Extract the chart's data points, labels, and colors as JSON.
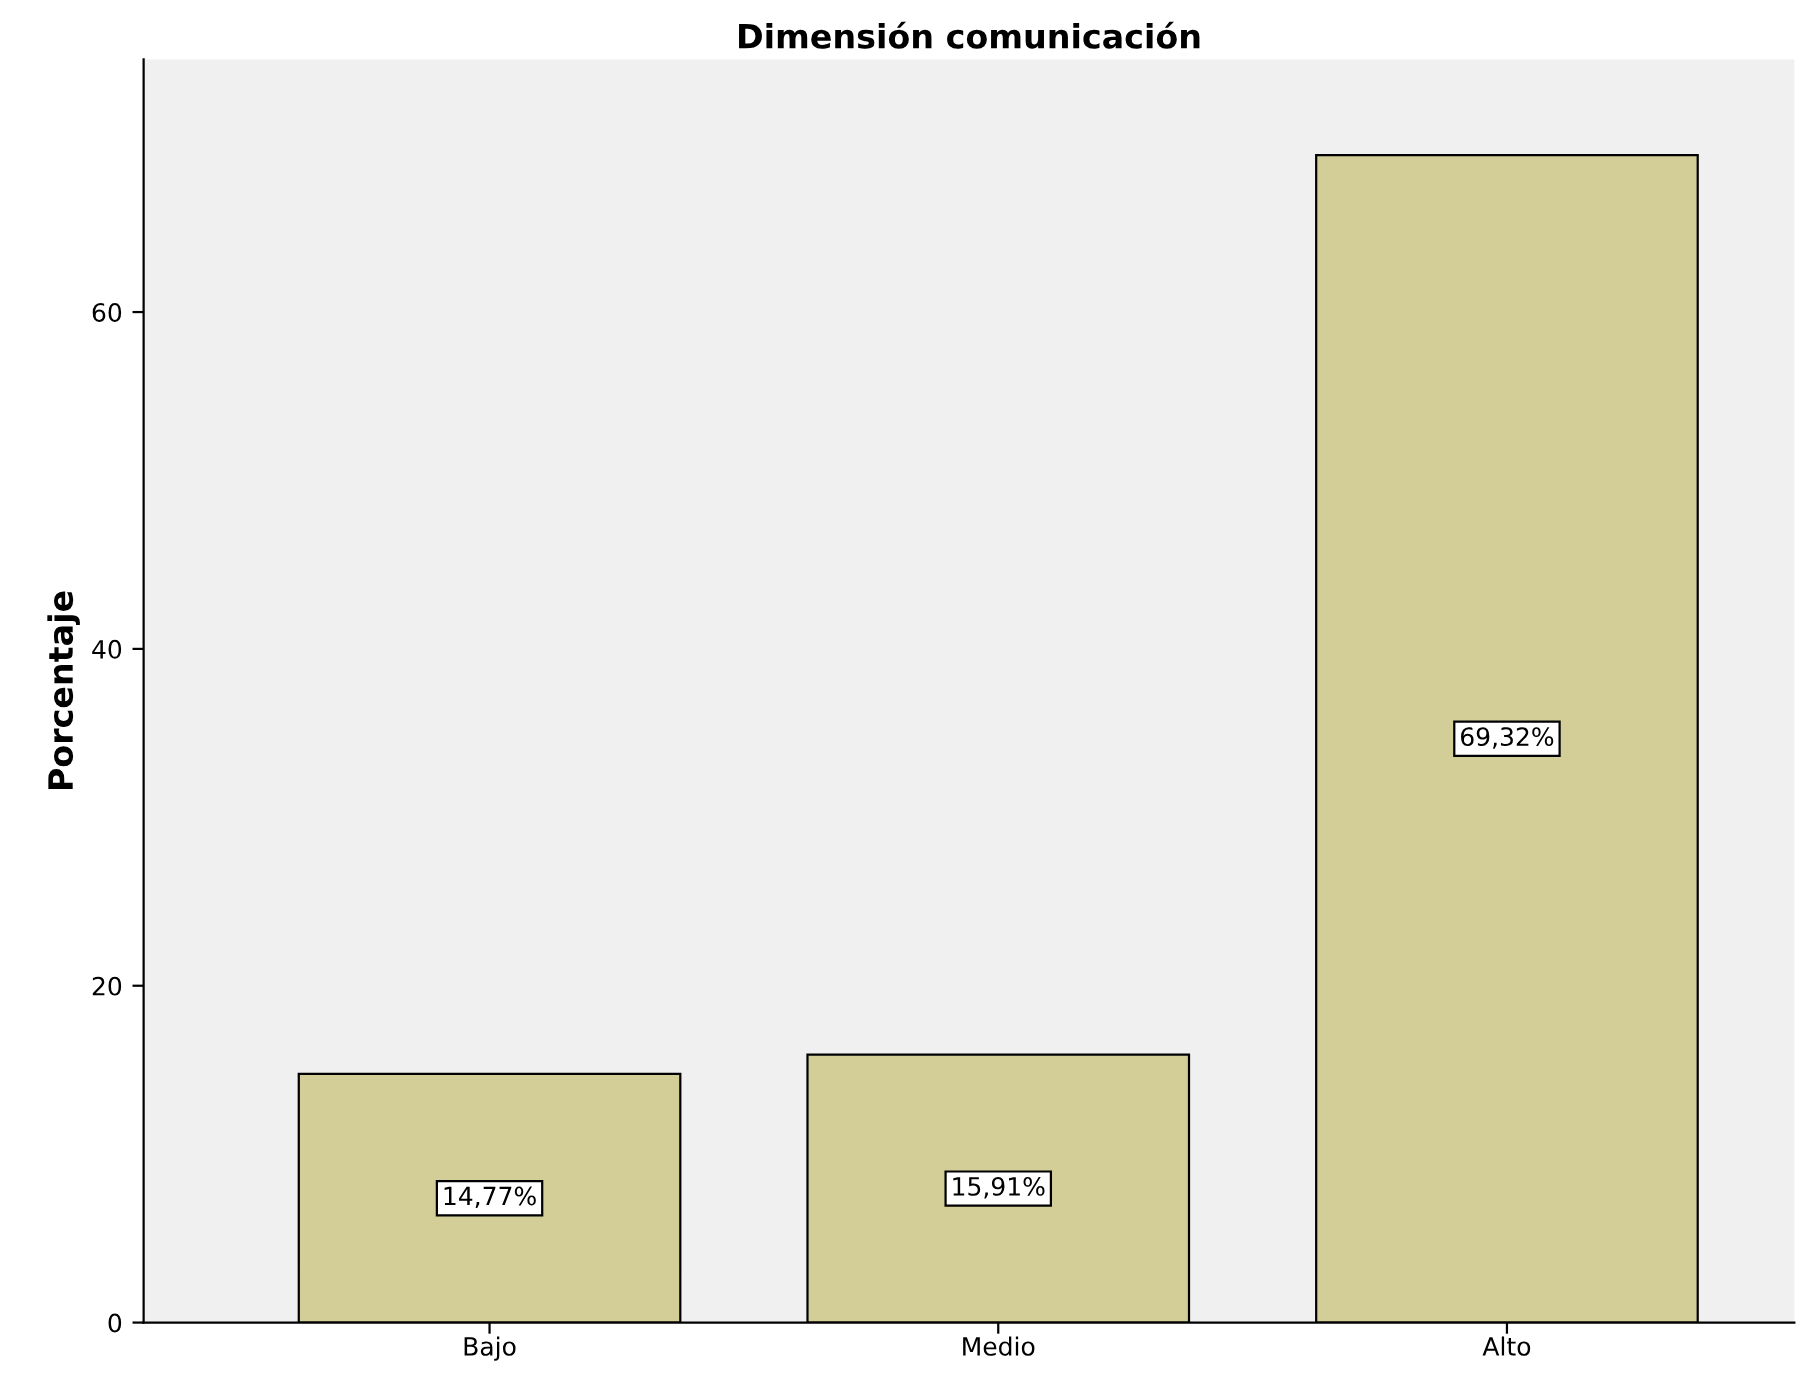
{
  "chart_data": {
    "type": "bar",
    "title": "Dimensión comunicación",
    "ylabel": "Porcentaje",
    "categories": [
      "Bajo",
      "Medio",
      "Alto"
    ],
    "values": [
      14.77,
      15.91,
      69.32
    ],
    "value_labels": [
      "14,77%",
      "15,91%",
      "69,32%"
    ],
    "color": "#d3ce97",
    "ylim": [
      0,
      75
    ],
    "yticks": [
      0,
      20,
      40,
      60
    ],
    "grid": false
  }
}
